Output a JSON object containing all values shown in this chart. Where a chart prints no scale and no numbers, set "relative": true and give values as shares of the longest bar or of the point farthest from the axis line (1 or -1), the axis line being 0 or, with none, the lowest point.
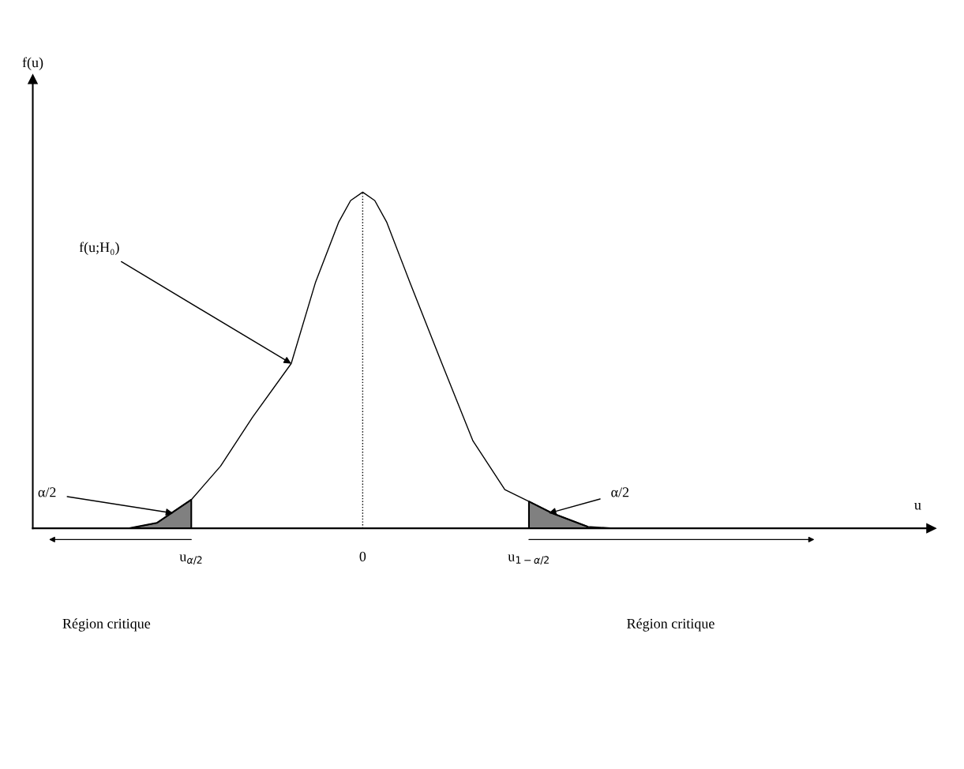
{
  "chart_data": {
    "type": "line",
    "relative": true,
    "xlabel": "u",
    "xlim": [
      -3.83,
      6.6
    ],
    "xticks": [
      {
        "value": -1.99,
        "label": "u$_{α/2}$"
      },
      {
        "value": 0,
        "label": "0"
      },
      {
        "value": 1.93,
        "label": "u$_{1−α/2}$"
      }
    ],
    "series": [
      {
        "color": "#000000",
        "x": [
          -2.71,
          -2.39,
          -1.99,
          -1.65,
          -1.28,
          -0.83,
          -0.55,
          -0.28,
          -0.14,
          0,
          0.14,
          0.28,
          0.55,
          0.92,
          1.28,
          1.65,
          1.93,
          2.2,
          2.61,
          2.94
        ],
        "values": [
          0,
          0.016,
          0.085,
          0.185,
          0.33,
          0.49,
          0.73,
          0.91,
          0.975,
          1,
          0.975,
          0.91,
          0.73,
          0.49,
          0.26,
          0.115,
          0.08,
          0.045,
          0.005,
          0
        ]
      },
      {
        "type": "area",
        "color": "#808080",
        "x": [
          -2.71,
          -2.39,
          -1.99
        ],
        "values": [
          0,
          0.016,
          0.085
        ]
      },
      {
        "type": "area",
        "color": "#808080",
        "x": [
          1.93,
          2.2,
          2.61
        ],
        "values": [
          0.08,
          0.045,
          0.005
        ]
      }
    ],
    "ref_lines": [
      {
        "axis": "x",
        "value": 0,
        "line_style": "dotted",
        "color": "#000000"
      }
    ],
    "annotations": [
      {
        "text": "f(u;H₀)",
        "x": -0.83,
        "y": 0.49
      },
      {
        "text": "α/2",
        "x": -2.2,
        "y": 0.045
      },
      {
        "text": "α/2",
        "x": 2.16,
        "y": 0.045
      },
      "Région critique",
      "Région critique",
      "f(u)"
    ],
    "grid": false,
    "legend": false
  }
}
